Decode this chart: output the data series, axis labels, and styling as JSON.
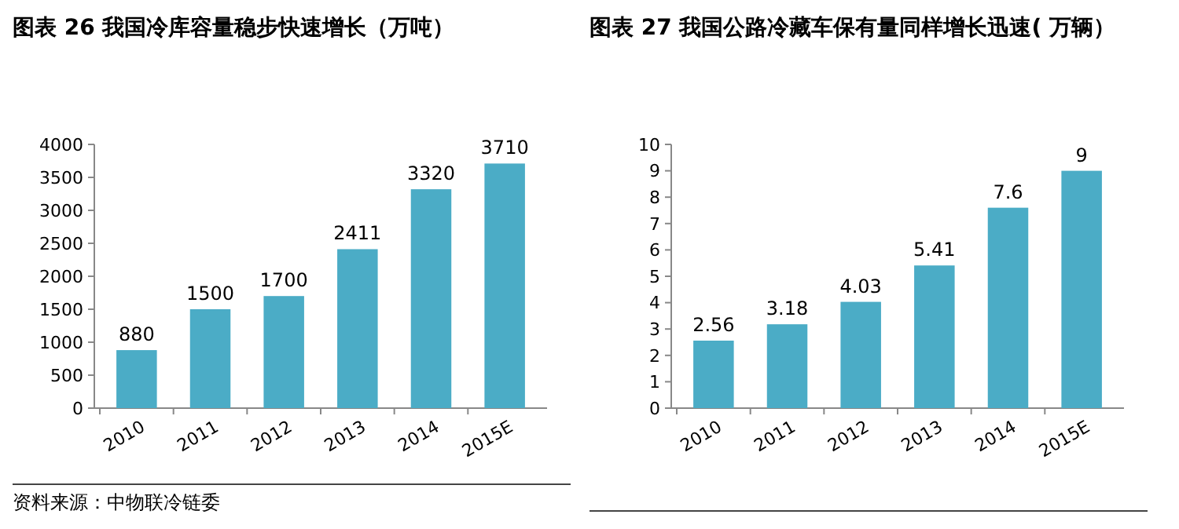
{
  "chart_data": [
    {
      "type": "bar",
      "title": "图表 26 我国冷库容量稳步快速增长（万吨）",
      "categories": [
        "2010",
        "2011",
        "2012",
        "2013",
        "2014",
        "2015E"
      ],
      "values": [
        880,
        1500,
        1700,
        2411,
        3320,
        3710
      ],
      "color": "#4bacc6",
      "ylim": [
        0,
        4000
      ],
      "yticks": [
        0,
        500,
        1000,
        1500,
        2000,
        2500,
        3000,
        3500,
        4000
      ],
      "data_labels": true,
      "annotations": [
        "资料来源：中物联冷链委"
      ]
    },
    {
      "type": "bar",
      "title": "图表 27 我国公路冷藏车保有量同样增长迅速( 万辆）",
      "categories": [
        "2010",
        "2011",
        "2012",
        "2013",
        "2014",
        "2015E"
      ],
      "values": [
        2.56,
        3.18,
        4.03,
        5.41,
        7.6,
        9
      ],
      "color": "#4bacc6",
      "ylim": [
        0,
        10
      ],
      "yticks": [
        0,
        1,
        2,
        3,
        4,
        5,
        6,
        7,
        8,
        9,
        10
      ],
      "data_labels": true
    }
  ]
}
